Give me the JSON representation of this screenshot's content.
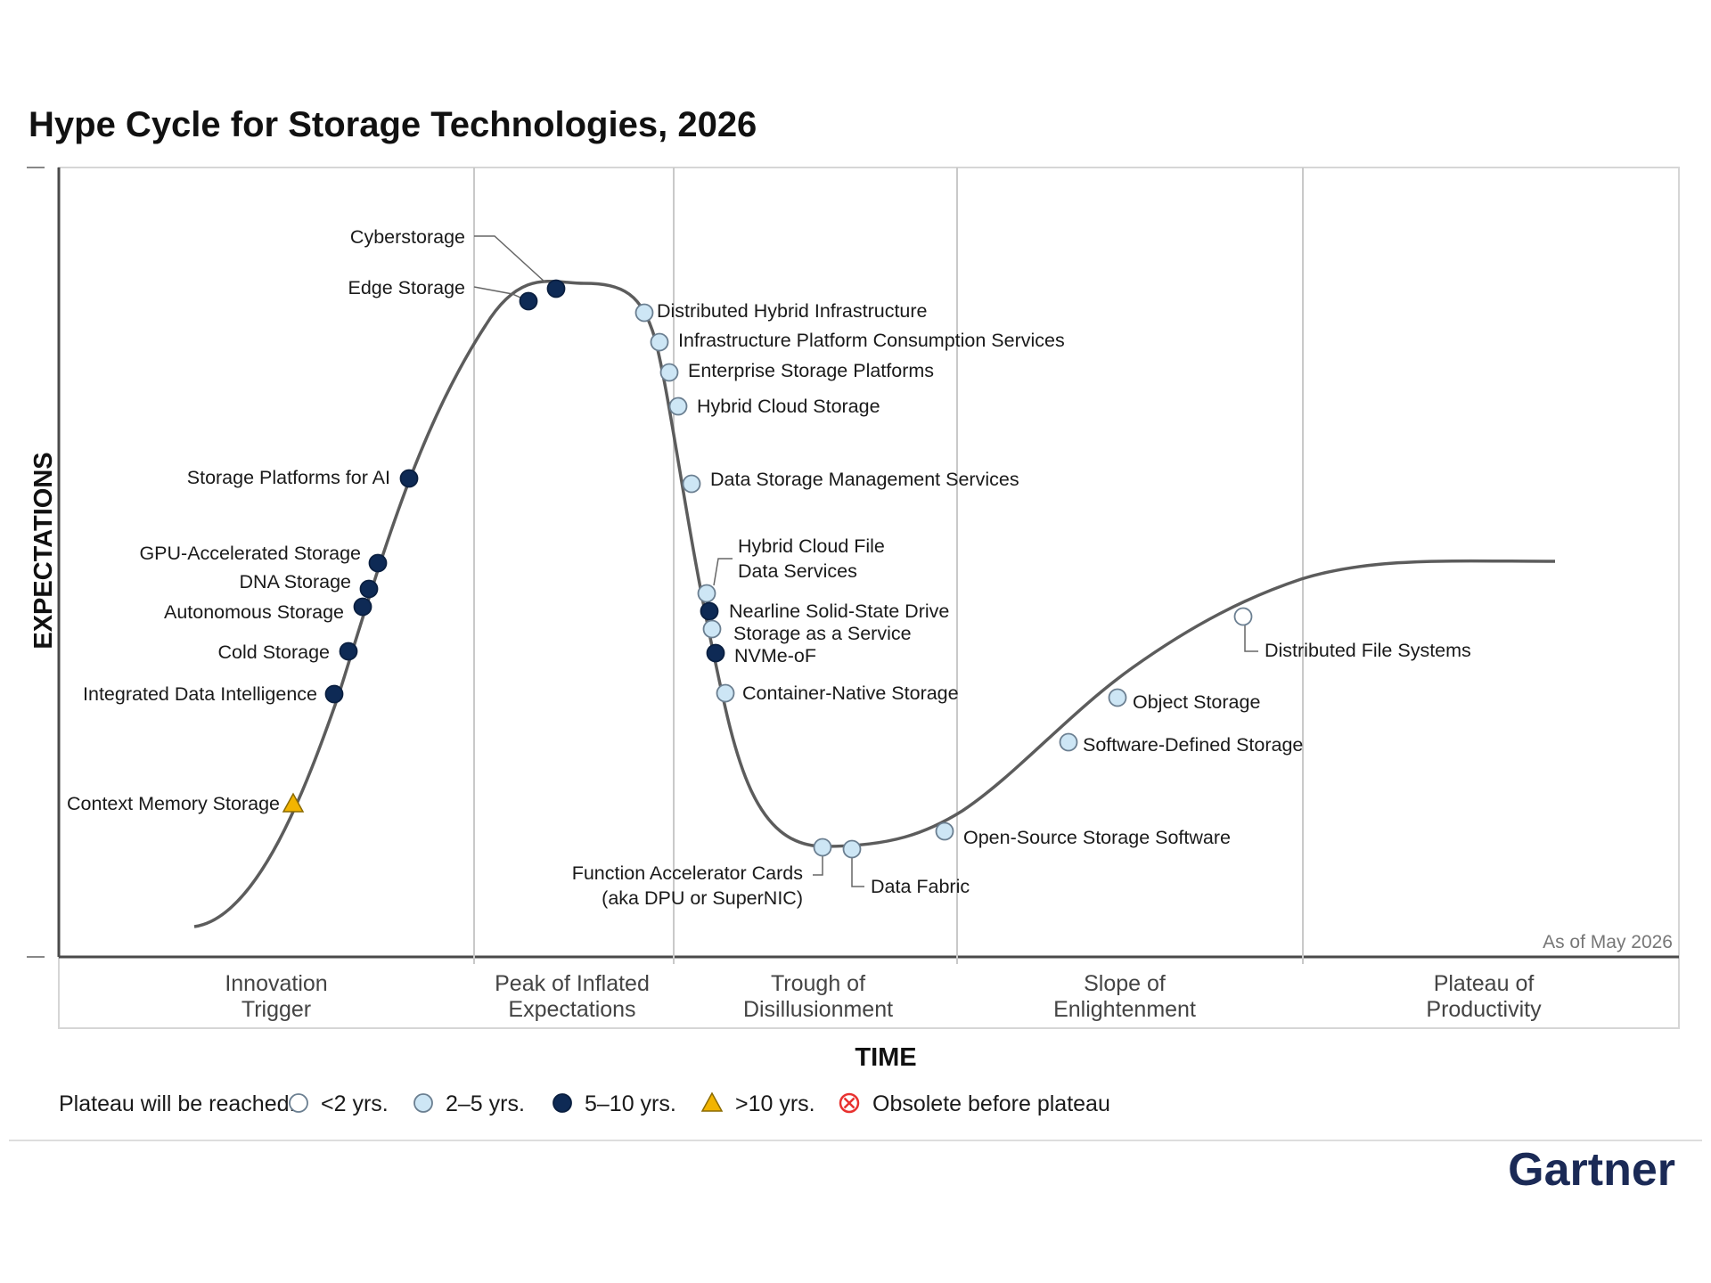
{
  "chart_data": {
    "type": "hype-cycle",
    "title": "Hype Cycle for Storage Technologies, 2026",
    "xlabel": "TIME",
    "ylabel": "EXPECTATIONS",
    "as_of": "As of May 2026",
    "brand": "Gartner",
    "phases": [
      {
        "lines": [
          "Innovation",
          "Trigger"
        ]
      },
      {
        "lines": [
          "Peak of Inflated",
          "Expectations"
        ]
      },
      {
        "lines": [
          "Trough of",
          "Disillusionment"
        ]
      },
      {
        "lines": [
          "Slope of",
          "Enlightenment"
        ]
      },
      {
        "lines": [
          "Plateau of",
          "Productivity"
        ]
      }
    ],
    "legend": {
      "label": "Plateau will be reached:",
      "items": [
        {
          "key": "lt2",
          "label": "<2 yrs.",
          "marker": "circle-white"
        },
        {
          "key": "2to5",
          "label": "2–5 yrs.",
          "marker": "circle-light"
        },
        {
          "key": "5to10",
          "label": "5–10 yrs.",
          "marker": "circle-navy"
        },
        {
          "key": "gt10",
          "label": ">10 yrs.",
          "marker": "triangle-gold"
        },
        {
          "key": "obsolete",
          "label": "Obsolete before plateau",
          "marker": "cross-red"
        }
      ]
    },
    "colors": {
      "lt2": "#ffffff",
      "2to5": "#cde6f5",
      "5to10": "#0e2a55",
      "gt10": "#f2b400",
      "obsolete": "#e8312f",
      "curve": "#5c5c5c",
      "grid": "#c9c9c9"
    },
    "technologies": [
      {
        "name": [
          "Context Memory Storage"
        ],
        "category": "gt10"
      },
      {
        "name": [
          "Integrated Data Intelligence"
        ],
        "category": "5to10"
      },
      {
        "name": [
          "Cold Storage"
        ],
        "category": "5to10"
      },
      {
        "name": [
          "Autonomous Storage"
        ],
        "category": "5to10"
      },
      {
        "name": [
          "DNA Storage"
        ],
        "category": "5to10"
      },
      {
        "name": [
          "GPU-Accelerated Storage"
        ],
        "category": "5to10"
      },
      {
        "name": [
          "Storage Platforms for AI"
        ],
        "category": "5to10"
      },
      {
        "name": [
          "Edge Storage"
        ],
        "category": "5to10"
      },
      {
        "name": [
          "Cyberstorage"
        ],
        "category": "5to10"
      },
      {
        "name": [
          "Distributed Hybrid Infrastructure"
        ],
        "category": "2to5"
      },
      {
        "name": [
          "Infrastructure Platform Consumption Services"
        ],
        "category": "2to5"
      },
      {
        "name": [
          "Enterprise Storage Platforms"
        ],
        "category": "2to5"
      },
      {
        "name": [
          "Hybrid Cloud Storage"
        ],
        "category": "2to5"
      },
      {
        "name": [
          "Data Storage Management Services"
        ],
        "category": "2to5"
      },
      {
        "name": [
          "Hybrid Cloud File",
          "Data Services"
        ],
        "category": "2to5"
      },
      {
        "name": [
          "Nearline Solid-State Drive"
        ],
        "category": "5to10"
      },
      {
        "name": [
          "Storage as a Service"
        ],
        "category": "2to5"
      },
      {
        "name": [
          "NVMe-oF"
        ],
        "category": "5to10"
      },
      {
        "name": [
          "Container-Native Storage"
        ],
        "category": "2to5"
      },
      {
        "name": [
          "Function Accelerator Cards",
          "(aka DPU or SuperNIC)"
        ],
        "category": "2to5"
      },
      {
        "name": [
          "Data Fabric"
        ],
        "category": "2to5"
      },
      {
        "name": [
          "Open-Source Storage Software"
        ],
        "category": "2to5"
      },
      {
        "name": [
          "Software-Defined Storage"
        ],
        "category": "2to5"
      },
      {
        "name": [
          "Object Storage"
        ],
        "category": "2to5"
      },
      {
        "name": [
          "Distributed File Systems"
        ],
        "category": "lt2"
      }
    ]
  }
}
